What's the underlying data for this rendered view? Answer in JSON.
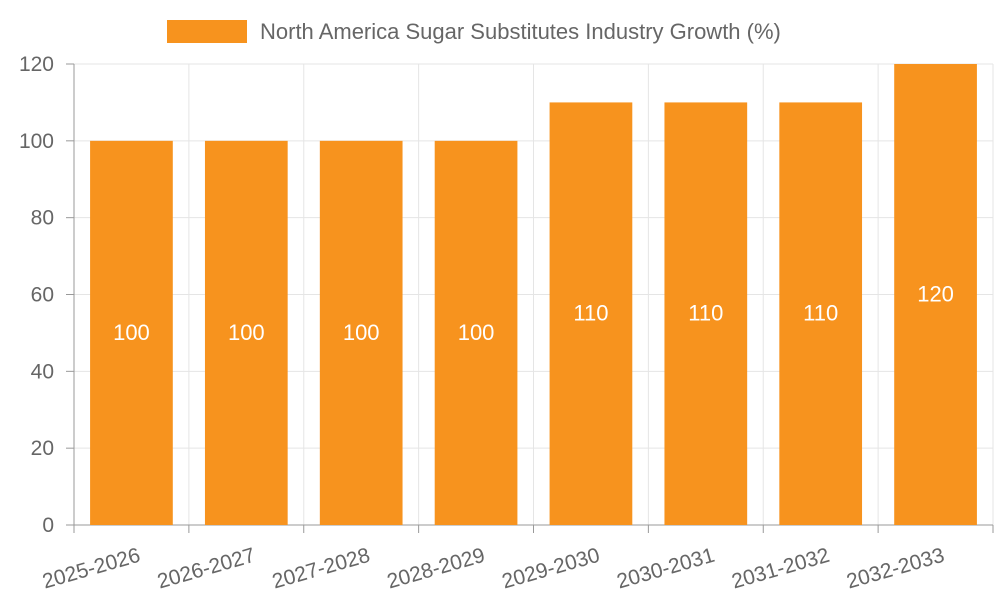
{
  "chart_data": {
    "type": "bar",
    "title": "",
    "xlabel": "",
    "ylabel": "",
    "ylim": [
      0,
      120
    ],
    "y_ticks": [
      0,
      20,
      40,
      60,
      80,
      100,
      120
    ],
    "grid": true,
    "legend_position": "top-center",
    "categories": [
      "2025-2026",
      "2026-2027",
      "2027-2028",
      "2028-2029",
      "2029-2030",
      "2030-2031",
      "2031-2032",
      "2032-2033"
    ],
    "series": [
      {
        "name": "North America Sugar Substitutes Industry Growth (%)",
        "values": [
          100,
          100,
          100,
          100,
          110,
          110,
          110,
          120
        ],
        "color": "#f7931e"
      }
    ],
    "data_label_color": "#ffffff",
    "axis_text_color": "#666666",
    "grid_color": "#e5e5e5",
    "axis_color": "#999999"
  }
}
